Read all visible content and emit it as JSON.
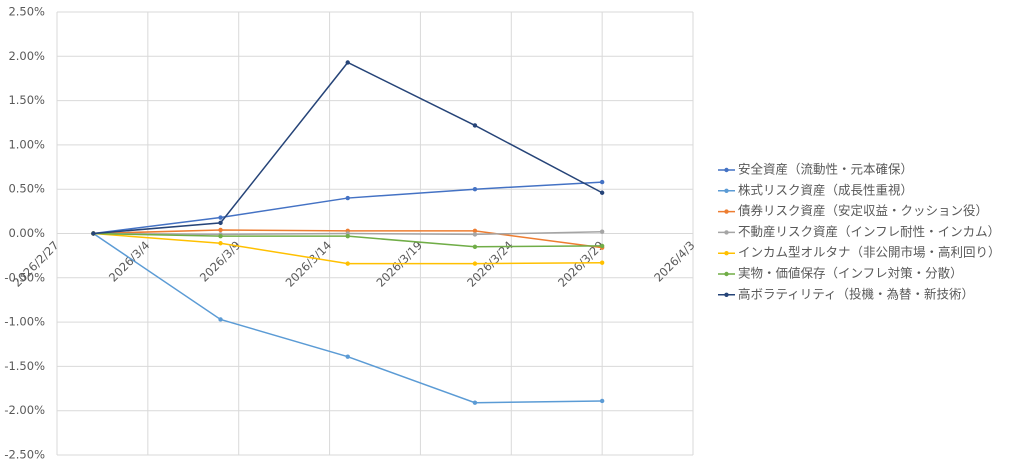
{
  "chart_data": {
    "type": "line",
    "x": [
      "2026/3/1",
      "2026/3/8",
      "2026/3/15",
      "2026/3/22",
      "2026/3/29"
    ],
    "xlim": [
      "2026/2/27",
      "2026/4/3"
    ],
    "xticks": [
      "2026/2/27",
      "2026/3/4",
      "2026/3/9",
      "2026/3/14",
      "2026/3/19",
      "2026/3/24",
      "2026/3/29",
      "2026/4/3"
    ],
    "ylim": [
      -2.5,
      2.5
    ],
    "yticks": [
      {
        "value": -2.5,
        "label": "-2.50%"
      },
      {
        "value": -2.0,
        "label": "-2.00%"
      },
      {
        "value": -1.5,
        "label": "-1.50%"
      },
      {
        "value": -1.0,
        "label": "-1.00%"
      },
      {
        "value": -0.5,
        "label": "-0.50%"
      },
      {
        "value": 0,
        "label": "0.00%"
      },
      {
        "value": 0.5,
        "label": "0.50%"
      },
      {
        "value": 1.0,
        "label": "1.00%"
      },
      {
        "value": 1.5,
        "label": "1.50%"
      },
      {
        "value": 2.0,
        "label": "2.00%"
      },
      {
        "value": 2.5,
        "label": "2.50%"
      }
    ],
    "grid": true,
    "legend": "right",
    "series": [
      {
        "name": "安全資産（流動性・元本確保）",
        "color": "#4472c4",
        "values": [
          0,
          0.18,
          0.4,
          0.5,
          0.58
        ]
      },
      {
        "name": "株式リスク資産（成長性重視）",
        "color": "#5b9bd5",
        "values": [
          0,
          -0.97,
          -1.39,
          -1.91,
          -1.89
        ]
      },
      {
        "name": "債券リスク資産（安定収益・クッション役）",
        "color": "#ed7d31",
        "values": [
          0,
          0.04,
          0.03,
          0.03,
          -0.16
        ]
      },
      {
        "name": "不動産リスク資産（インフレ耐性・インカム）",
        "color": "#a5a5a5",
        "values": [
          0,
          -0.01,
          0.0,
          -0.01,
          0.02
        ]
      },
      {
        "name": "インカム型オルタナ（非公開市場・高利回り）",
        "color": "#ffc000",
        "values": [
          0,
          -0.11,
          -0.34,
          -0.34,
          -0.33
        ]
      },
      {
        "name": "実物・価値保存（インフレ対策・分散）",
        "color": "#70ad47",
        "values": [
          0,
          -0.03,
          -0.03,
          -0.15,
          -0.14
        ]
      },
      {
        "name": "高ボラティリティ（投機・為替・新技術）",
        "color": "#264478",
        "values": [
          0,
          0.12,
          1.93,
          1.22,
          0.46
        ]
      }
    ]
  }
}
